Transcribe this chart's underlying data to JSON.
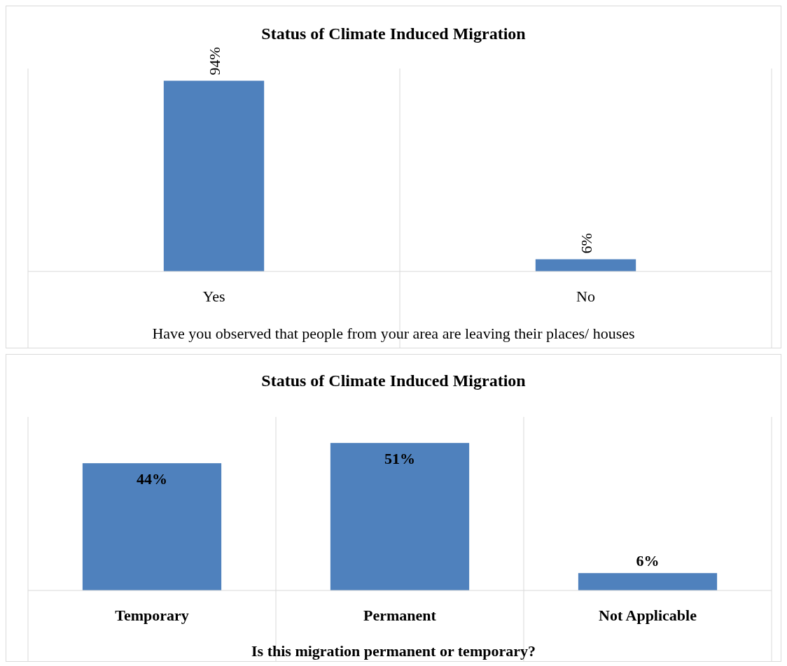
{
  "chart_data": [
    {
      "type": "bar",
      "title": "Status of Climate Induced Migration",
      "xlabel": "Have you observed that people from your area are leaving their places/ houses",
      "categories": [
        "Yes",
        "No"
      ],
      "values": [
        94,
        6
      ],
      "value_labels": [
        "94%",
        "6%"
      ],
      "color": "#4f81bd",
      "ylim": [
        0,
        100
      ],
      "grid": "x"
    },
    {
      "type": "bar",
      "title": "Status of Climate Induced Migration",
      "xlabel": "Is this migration permanent or temporary?",
      "categories": [
        "Temporary",
        "Permanent",
        "Not Applicable"
      ],
      "values": [
        44,
        51,
        6
      ],
      "value_labels": [
        "44%",
        "51%",
        "6%"
      ],
      "color": "#4f81bd",
      "ylim": [
        0,
        60
      ],
      "grid": "x"
    }
  ]
}
